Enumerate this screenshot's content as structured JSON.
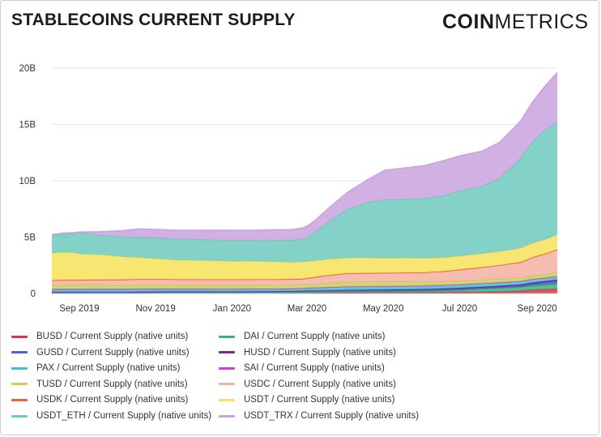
{
  "title": "STABLECOINS CURRENT SUPPLY",
  "logo": {
    "bold": "COIN",
    "thin": "METRICS"
  },
  "chart_data": {
    "type": "area",
    "stacked": true,
    "x_ticks": [
      "Sep 2019",
      "Nov 2019",
      "Jan 2020",
      "Mar 2020",
      "May 2020",
      "Jul 2020",
      "Sep 2020"
    ],
    "y_ticks": [
      "0",
      "5B",
      "10B",
      "15B",
      "20B"
    ],
    "ylim": [
      0,
      21
    ],
    "x_dates": [
      "2019-08-23",
      "2019-09-01",
      "2019-09-10",
      "2019-09-14",
      "2019-10-01",
      "2019-10-20",
      "2019-11-01",
      "2019-11-15",
      "2019-12-01",
      "2020-01-01",
      "2020-01-15",
      "2020-02-01",
      "2020-02-15",
      "2020-03-01",
      "2020-03-10",
      "2020-03-15",
      "2020-03-20",
      "2020-04-01",
      "2020-04-15",
      "2020-05-01",
      "2020-05-15",
      "2020-06-01",
      "2020-06-15",
      "2020-07-01",
      "2020-07-15",
      "2020-08-01",
      "2020-08-15",
      "2020-09-01",
      "2020-09-10",
      "2020-09-20",
      "2020-09-30"
    ],
    "series": [
      {
        "name": "BUSD / Current Supply (native units)",
        "color": "#d9364a",
        "values": [
          0.02,
          0.02,
          0.02,
          0.02,
          0.02,
          0.02,
          0.02,
          0.03,
          0.03,
          0.03,
          0.03,
          0.03,
          0.03,
          0.04,
          0.05,
          0.06,
          0.07,
          0.08,
          0.09,
          0.1,
          0.1,
          0.1,
          0.1,
          0.11,
          0.12,
          0.13,
          0.16,
          0.22,
          0.3,
          0.35,
          0.4
        ]
      },
      {
        "name": "DAI / Current Supply (native units)",
        "color": "#3bb07a",
        "values": [
          0,
          0,
          0,
          0,
          0,
          0,
          0.02,
          0.03,
          0.04,
          0.05,
          0.05,
          0.06,
          0.06,
          0.07,
          0.08,
          0.09,
          0.09,
          0.09,
          0.1,
          0.1,
          0.1,
          0.11,
          0.12,
          0.15,
          0.2,
          0.28,
          0.32,
          0.35,
          0.4,
          0.42,
          0.45
        ]
      },
      {
        "name": "GUSD / Current Supply (native units)",
        "color": "#4a64c8",
        "values": [
          0.12,
          0.12,
          0.12,
          0.12,
          0.11,
          0.11,
          0.11,
          0.11,
          0.11,
          0.1,
          0.1,
          0.1,
          0.1,
          0.1,
          0.1,
          0.1,
          0.1,
          0.1,
          0.1,
          0.1,
          0.1,
          0.1,
          0.1,
          0.1,
          0.1,
          0.1,
          0.1,
          0.12,
          0.15,
          0.2,
          0.25
        ]
      },
      {
        "name": "HUSD / Current Supply (native units)",
        "color": "#7a2a8c",
        "values": [
          0,
          0,
          0,
          0,
          0,
          0,
          0,
          0,
          0,
          0,
          0,
          0,
          0,
          0,
          0,
          0,
          0,
          0.01,
          0.02,
          0.03,
          0.05,
          0.06,
          0.07,
          0.08,
          0.08,
          0.09,
          0.1,
          0.11,
          0.12,
          0.12,
          0.12
        ]
      },
      {
        "name": "PAX / Current Supply (native units)",
        "color": "#39c4d2",
        "values": [
          0.2,
          0.21,
          0.21,
          0.21,
          0.22,
          0.22,
          0.23,
          0.23,
          0.23,
          0.23,
          0.23,
          0.23,
          0.23,
          0.23,
          0.24,
          0.25,
          0.26,
          0.28,
          0.3,
          0.3,
          0.3,
          0.3,
          0.3,
          0.3,
          0.3,
          0.3,
          0.3,
          0.3,
          0.3,
          0.3,
          0.3
        ]
      },
      {
        "name": "SAI / Current Supply (native units)",
        "color": "#d93bd2",
        "values": [
          0.05,
          0.05,
          0.05,
          0.05,
          0.05,
          0.05,
          0.04,
          0.03,
          0.02,
          0.01,
          0.01,
          0.01,
          0.01,
          0,
          0,
          0,
          0,
          0,
          0,
          0,
          0,
          0,
          0,
          0,
          0,
          0,
          0,
          0,
          0,
          0,
          0
        ]
      },
      {
        "name": "TUSD / Current Supply (native units)",
        "color": "#c9cf5a",
        "values": [
          0.35,
          0.35,
          0.35,
          0.35,
          0.35,
          0.33,
          0.33,
          0.32,
          0.3,
          0.3,
          0.3,
          0.3,
          0.3,
          0.3,
          0.3,
          0.3,
          0.3,
          0.35,
          0.4,
          0.4,
          0.4,
          0.4,
          0.35,
          0.3,
          0.3,
          0.3,
          0.3,
          0.3,
          0.3,
          0.3,
          0.35
        ]
      },
      {
        "name": "USDC / Current Supply (native units)",
        "color": "#f5b0a4",
        "values": [
          0.4,
          0.42,
          0.42,
          0.42,
          0.45,
          0.48,
          0.5,
          0.5,
          0.5,
          0.5,
          0.5,
          0.5,
          0.5,
          0.5,
          0.5,
          0.55,
          0.6,
          0.7,
          0.75,
          0.75,
          0.75,
          0.75,
          0.8,
          0.9,
          1.0,
          1.1,
          1.2,
          1.35,
          1.6,
          1.8,
          2.0
        ]
      },
      {
        "name": "USDK / Current Supply (native units)",
        "color": "#e8623a",
        "values": [
          0.03,
          0.03,
          0.03,
          0.03,
          0.03,
          0.03,
          0.03,
          0.03,
          0.03,
          0.03,
          0.03,
          0.03,
          0.03,
          0.03,
          0.03,
          0.03,
          0.03,
          0.03,
          0.03,
          0.03,
          0.03,
          0.03,
          0.03,
          0.03,
          0.03,
          0.03,
          0.03,
          0.03,
          0.03,
          0.03,
          0.03
        ]
      },
      {
        "name": "USDT / Current Supply (native units)",
        "color": "#f7e25a",
        "values": [
          2.4,
          2.45,
          2.4,
          2.3,
          2.2,
          2.0,
          1.9,
          1.8,
          1.7,
          1.65,
          1.6,
          1.6,
          1.55,
          1.5,
          1.5,
          1.45,
          1.45,
          1.4,
          1.35,
          1.35,
          1.3,
          1.3,
          1.25,
          1.2,
          1.2,
          1.2,
          1.2,
          1.25,
          1.25,
          1.25,
          1.3
        ]
      },
      {
        "name": "USDT_ETH / Current Supply (native units)",
        "color": "#6fcabd",
        "values": [
          1.6,
          1.65,
          1.75,
          1.9,
          1.75,
          1.75,
          1.8,
          1.85,
          1.85,
          1.85,
          1.85,
          1.85,
          1.9,
          1.95,
          2.0,
          2.2,
          2.5,
          3.4,
          4.3,
          4.9,
          5.2,
          5.2,
          5.3,
          5.5,
          5.8,
          6.0,
          6.5,
          8.0,
          9.0,
          9.7,
          10.0
        ]
      },
      {
        "name": "USDT_TRX / Current Supply (native units)",
        "color": "#c9a3de",
        "values": [
          0.05,
          0.05,
          0.05,
          0.05,
          0.3,
          0.6,
          0.75,
          0.75,
          0.8,
          0.85,
          0.9,
          0.9,
          0.95,
          0.95,
          1.0,
          1.0,
          1.05,
          1.2,
          1.5,
          2.0,
          2.6,
          2.8,
          2.9,
          3.1,
          3.1,
          3.1,
          3.2,
          3.3,
          3.5,
          3.9,
          4.4
        ]
      }
    ]
  }
}
